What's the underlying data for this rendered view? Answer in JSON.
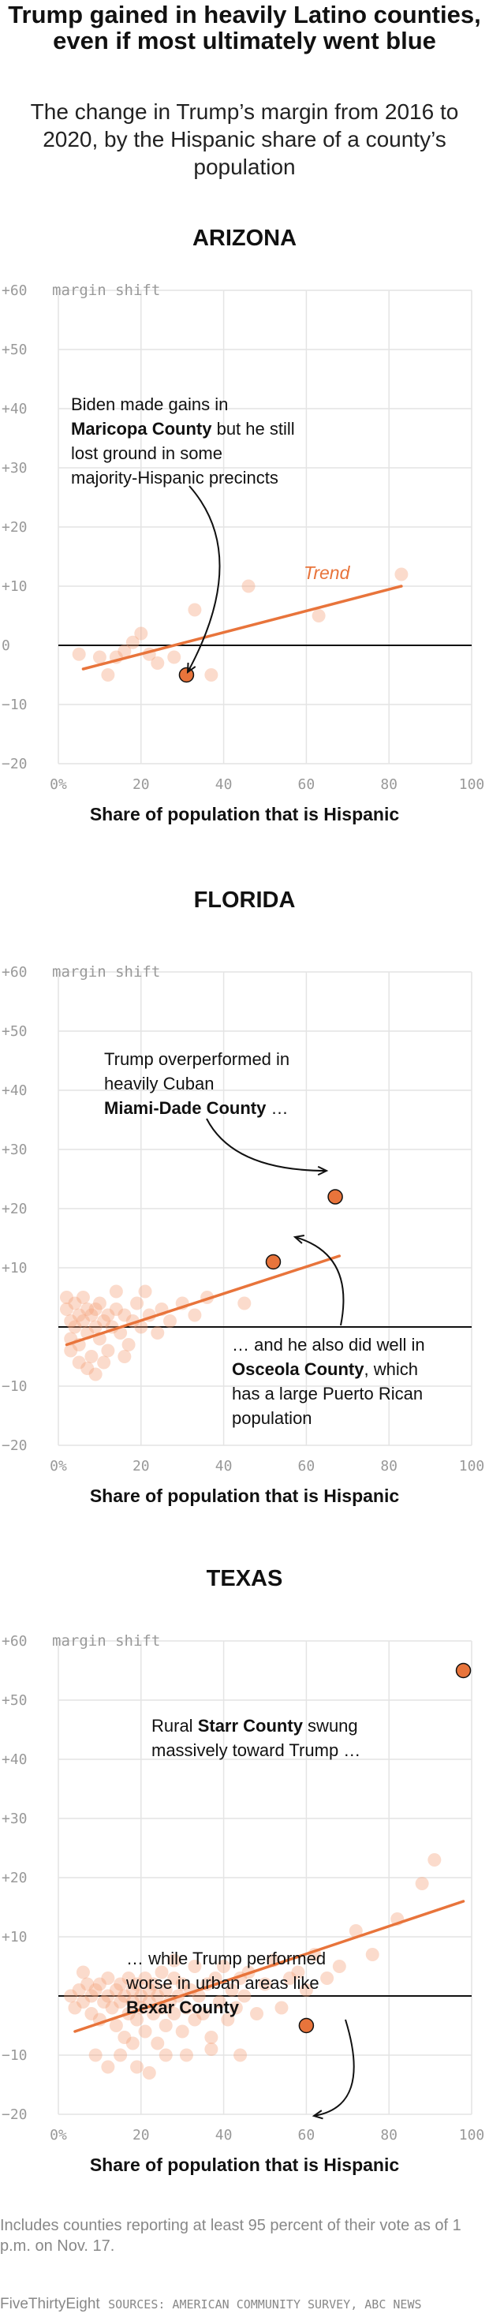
{
  "title": "Trump gained in heavily Latino counties, even if most ultimately went blue",
  "subtitle": "The change in Trump’s margin from 2016 to 2020, by the Hispanic share of a county’s population",
  "footnote": "Includes counties reporting at least 95 percent of their vote as of 1 p.m. on Nov. 17.",
  "credit": {
    "brand": "FiveThirtyEight",
    "sources": "SOURCES: AMERICAN COMMUNITY SURVEY, ABC NEWS"
  },
  "colors": {
    "accent": "#e8743b",
    "point": "#f4a17a",
    "highlight": "#e8743b",
    "text": "#111111",
    "tick": "#999999",
    "grid": "#e4e4e4"
  },
  "chart_data": [
    {
      "type": "scatter",
      "title": "ARIZONA",
      "xlabel": "Share of population that is Hispanic",
      "ylabel": "margin shift",
      "xlim": [
        0,
        100
      ],
      "ylim": [
        -20,
        60
      ],
      "x_ticks": [
        "0%",
        "20",
        "40",
        "60",
        "80",
        "100"
      ],
      "y_ticks": [
        "+60",
        "+50",
        "+40",
        "+30",
        "+20",
        "+10",
        "0",
        "−10",
        "−20"
      ],
      "grid": true,
      "points": [
        [
          5,
          -1.5
        ],
        [
          10,
          -2
        ],
        [
          12,
          -5
        ],
        [
          14,
          -2
        ],
        [
          16,
          -1
        ],
        [
          18,
          0.5
        ],
        [
          20,
          2
        ],
        [
          22,
          -1.5
        ],
        [
          24,
          -3
        ],
        [
          28,
          -2
        ],
        [
          33,
          6
        ],
        [
          37,
          -5
        ],
        [
          46,
          10
        ],
        [
          63,
          5
        ],
        [
          83,
          12
        ]
      ],
      "trend": {
        "x": [
          6,
          83
        ],
        "y": [
          -4,
          10
        ],
        "label": "Trend"
      },
      "highlights": [
        {
          "x": 31,
          "y": -5
        }
      ],
      "annotations": [
        {
          "lines": [
            {
              "runs": [
                {
                  "t": "Biden made gains in",
                  "b": false
                }
              ]
            },
            {
              "runs": [
                {
                  "t": "Maricopa County",
                  "b": true
                },
                {
                  "t": " but he still",
                  "b": false
                }
              ]
            },
            {
              "runs": [
                {
                  "t": "lost ground in some",
                  "b": false
                }
              ]
            },
            {
              "runs": [
                {
                  "t": "majority-Hispanic precincts",
                  "b": false
                }
              ]
            }
          ]
        }
      ]
    },
    {
      "type": "scatter",
      "title": "FLORIDA",
      "xlabel": "Share of population that is Hispanic",
      "ylabel": "margin shift",
      "xlim": [
        0,
        100
      ],
      "ylim": [
        -20,
        60
      ],
      "x_ticks": [
        "0%",
        "20",
        "40",
        "60",
        "80",
        "100"
      ],
      "y_ticks": [
        "+60",
        "+50",
        "+40",
        "+30",
        "+20",
        "+10",
        "",
        "−10",
        "−20"
      ],
      "grid": true,
      "points": [
        [
          2,
          3
        ],
        [
          3,
          1
        ],
        [
          3,
          -2
        ],
        [
          4,
          4
        ],
        [
          4,
          0
        ],
        [
          5,
          2
        ],
        [
          5,
          -3
        ],
        [
          6,
          1
        ],
        [
          6,
          5
        ],
        [
          7,
          3
        ],
        [
          7,
          -1
        ],
        [
          8,
          2
        ],
        [
          8,
          -5
        ],
        [
          9,
          0
        ],
        [
          9,
          3
        ],
        [
          10,
          -2
        ],
        [
          10,
          4
        ],
        [
          11,
          1
        ],
        [
          12,
          -4
        ],
        [
          12,
          2
        ],
        [
          13,
          0
        ],
        [
          14,
          3
        ],
        [
          15,
          -1
        ],
        [
          16,
          2
        ],
        [
          17,
          -3
        ],
        [
          18,
          1
        ],
        [
          19,
          4
        ],
        [
          20,
          0
        ],
        [
          21,
          6
        ],
        [
          22,
          2
        ],
        [
          24,
          -1
        ],
        [
          25,
          3
        ],
        [
          27,
          1
        ],
        [
          30,
          4
        ],
        [
          33,
          2
        ],
        [
          36,
          5
        ],
        [
          45,
          4
        ],
        [
          7,
          -7
        ],
        [
          9,
          -8
        ],
        [
          3,
          -4
        ],
        [
          5,
          -6
        ],
        [
          11,
          -6
        ],
        [
          2,
          5
        ],
        [
          14,
          6
        ],
        [
          16,
          -5
        ]
      ],
      "trend": {
        "x": [
          2,
          68
        ],
        "y": [
          -3,
          12
        ],
        "label": ""
      },
      "highlights": [
        {
          "x": 67,
          "y": 22
        },
        {
          "x": 52,
          "y": 11
        }
      ],
      "annotations": [
        {
          "lines": [
            {
              "runs": [
                {
                  "t": "Trump overperformed in",
                  "b": false
                }
              ]
            },
            {
              "runs": [
                {
                  "t": "heavily Cuban",
                  "b": false
                }
              ]
            },
            {
              "runs": [
                {
                  "t": "Miami-Dade County",
                  "b": true
                },
                {
                  "t": " …",
                  "b": false
                }
              ]
            }
          ]
        },
        {
          "lines": [
            {
              "runs": [
                {
                  "t": "… and he also did well in",
                  "b": false
                }
              ]
            },
            {
              "runs": [
                {
                  "t": "Osceola County",
                  "b": true
                },
                {
                  "t": ", which",
                  "b": false
                }
              ]
            },
            {
              "runs": [
                {
                  "t": "has a large Puerto Rican",
                  "b": false
                }
              ]
            },
            {
              "runs": [
                {
                  "t": "population",
                  "b": false
                }
              ]
            }
          ]
        }
      ]
    },
    {
      "type": "scatter",
      "title": "TEXAS",
      "xlabel": "Share of population that is Hispanic",
      "ylabel": "margin shift",
      "xlim": [
        0,
        100
      ],
      "ylim": [
        -20,
        60
      ],
      "x_ticks": [
        "0%",
        "20",
        "40",
        "60",
        "80",
        "100"
      ],
      "y_ticks": [
        "+60",
        "+50",
        "+40",
        "+30",
        "+20",
        "+10",
        "",
        "−10",
        "−20"
      ],
      "grid": true,
      "points": [
        [
          3,
          0
        ],
        [
          4,
          -2
        ],
        [
          5,
          1
        ],
        [
          6,
          -1
        ],
        [
          7,
          2
        ],
        [
          8,
          -3
        ],
        [
          8,
          0
        ],
        [
          9,
          1
        ],
        [
          10,
          -4
        ],
        [
          10,
          2
        ],
        [
          11,
          -1
        ],
        [
          12,
          3
        ],
        [
          12,
          0
        ],
        [
          13,
          -2
        ],
        [
          14,
          1
        ],
        [
          14,
          -5
        ],
        [
          15,
          2
        ],
        [
          15,
          -1
        ],
        [
          16,
          0
        ],
        [
          16,
          -7
        ],
        [
          17,
          3
        ],
        [
          17,
          -3
        ],
        [
          18,
          1
        ],
        [
          18,
          -1
        ],
        [
          19,
          -4
        ],
        [
          19,
          2
        ],
        [
          20,
          0
        ],
        [
          20,
          -2
        ],
        [
          21,
          3
        ],
        [
          21,
          -6
        ],
        [
          22,
          1
        ],
        [
          22,
          -1
        ],
        [
          23,
          -3
        ],
        [
          23,
          2
        ],
        [
          24,
          0
        ],
        [
          24,
          -8
        ],
        [
          25,
          -2
        ],
        [
          25,
          4
        ],
        [
          26,
          1
        ],
        [
          26,
          -5
        ],
        [
          27,
          -1
        ],
        [
          28,
          3
        ],
        [
          28,
          -3
        ],
        [
          29,
          0
        ],
        [
          30,
          -6
        ],
        [
          30,
          2
        ],
        [
          31,
          -2
        ],
        [
          32,
          1
        ],
        [
          33,
          -4
        ],
        [
          33,
          5
        ],
        [
          34,
          0
        ],
        [
          35,
          -3
        ],
        [
          36,
          2
        ],
        [
          37,
          -7
        ],
        [
          38,
          3
        ],
        [
          39,
          -1
        ],
        [
          40,
          5
        ],
        [
          41,
          -4
        ],
        [
          42,
          1
        ],
        [
          43,
          -2
        ],
        [
          44,
          3
        ],
        [
          45,
          0
        ],
        [
          46,
          4
        ],
        [
          48,
          -3
        ],
        [
          50,
          2
        ],
        [
          52,
          6
        ],
        [
          54,
          -2
        ],
        [
          56,
          3
        ],
        [
          58,
          4
        ],
        [
          60,
          1
        ],
        [
          62,
          7
        ],
        [
          65,
          3
        ],
        [
          68,
          5
        ],
        [
          72,
          11
        ],
        [
          76,
          7
        ],
        [
          82,
          13
        ],
        [
          88,
          19
        ],
        [
          91,
          23
        ],
        [
          12,
          -12
        ],
        [
          15,
          -10
        ],
        [
          19,
          -12
        ],
        [
          22,
          -13
        ],
        [
          26,
          -10
        ],
        [
          31,
          -10
        ],
        [
          37,
          -9
        ],
        [
          9,
          -10
        ],
        [
          6,
          4
        ],
        [
          44,
          -10
        ],
        [
          18,
          -8
        ],
        [
          28,
          6
        ]
      ],
      "trend": {
        "x": [
          4,
          98
        ],
        "y": [
          -6,
          16
        ],
        "label": ""
      },
      "highlights": [
        {
          "x": 98,
          "y": 55
        },
        {
          "x": 60,
          "y": -5
        }
      ],
      "annotations": [
        {
          "lines": [
            {
              "runs": [
                {
                  "t": "Rural ",
                  "b": false
                },
                {
                  "t": "Starr County",
                  "b": true
                },
                {
                  "t": " swung",
                  "b": false
                }
              ]
            },
            {
              "runs": [
                {
                  "t": "massively toward Trump …",
                  "b": false
                }
              ]
            }
          ]
        },
        {
          "lines": [
            {
              "runs": [
                {
                  "t": "… while Trump performed",
                  "b": false
                }
              ]
            },
            {
              "runs": [
                {
                  "t": "worse in urban areas like",
                  "b": false
                }
              ]
            },
            {
              "runs": [
                {
                  "t": "Bexar County",
                  "b": true
                }
              ]
            }
          ]
        }
      ]
    }
  ]
}
